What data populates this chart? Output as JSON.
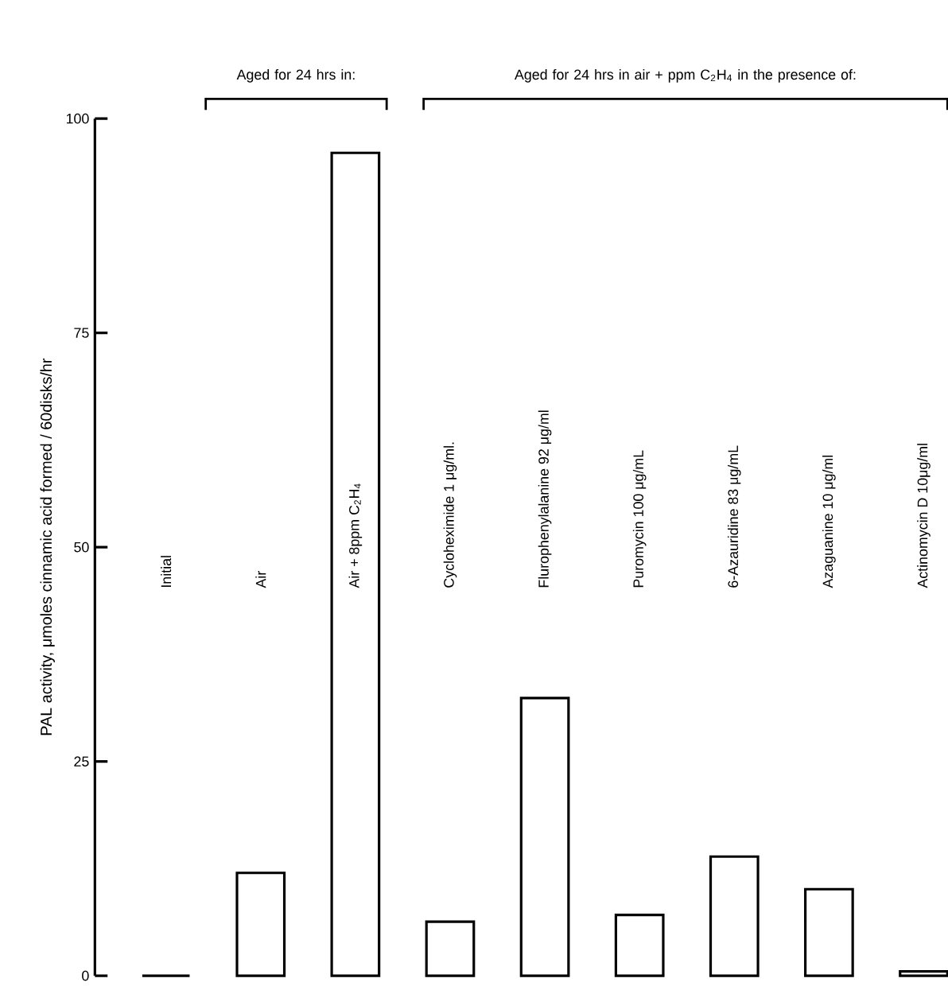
{
  "chart_data": {
    "type": "bar",
    "ylabel": "PAL activity,  μmoles cinnamic acid formed / 60disks/hr",
    "categories": [
      "Initial",
      "Air",
      "Air + 8ppm C$_{2}$H$_{4}$",
      "Cycloheximide  1 μg/ml.",
      "Flurophenylalanine 92 μg/ml",
      "Puromycin 100 μg/mL",
      "6-Azauridine 83 μg/mL",
      "Azaguanine 10 μg/ml",
      "Actinomycin D 10μg/ml"
    ],
    "values": [
      0,
      12,
      96,
      6.3,
      32.4,
      7.1,
      13.9,
      10.1,
      0.5
    ],
    "color": "#ffffff",
    "annotations": [
      "Aged for 24 hrs in:",
      "Aged for 24 hrs in air + ppm C$_{2}$H$_{4}$ in the presence of:"
    ],
    "ylim": [
      0,
      100
    ],
    "yticks": [
      0,
      25,
      50,
      75,
      100
    ]
  }
}
